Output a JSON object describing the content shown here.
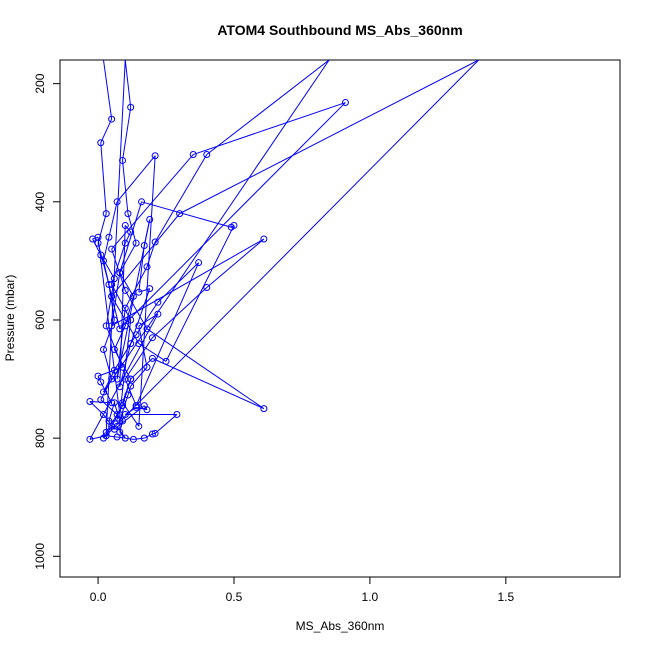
{
  "chart_data": {
    "type": "scatter",
    "title": "ATOM4 Southbound MS_Abs_360nm",
    "xlabel": "MS_Abs_360nm",
    "ylabel": "Pressure (mbar)",
    "xlim": [
      -0.14,
      1.92
    ],
    "ylim": [
      1035,
      160
    ],
    "y_reversed": true,
    "x_ticks": [
      "0.0",
      "0.5",
      "1.0",
      "1.5"
    ],
    "y_ticks": [
      "200",
      "400",
      "600",
      "800",
      "1000"
    ],
    "grid": false,
    "legend": "none",
    "series_color": "#0000ff",
    "marker": "open-circle",
    "connected": true,
    "series": [
      {
        "points": [
          [
            0.02,
            160
          ],
          [
            0.05,
            260
          ],
          [
            0.01,
            300
          ],
          [
            0.03,
            420
          ],
          [
            0.0,
            470
          ],
          [
            0.04,
            540
          ],
          [
            0.06,
            600
          ],
          [
            0.02,
            650
          ],
          [
            0.05,
            700
          ],
          [
            0.01,
            735
          ],
          [
            0.07,
            760
          ],
          [
            0.03,
            790
          ],
          [
            0.1,
            160
          ],
          [
            0.12,
            240
          ],
          [
            0.09,
            330
          ],
          [
            0.11,
            420
          ],
          [
            0.14,
            470
          ],
          [
            0.08,
            520
          ],
          [
            0.13,
            560
          ],
          [
            0.1,
            610
          ],
          [
            0.06,
            650
          ],
          [
            0.12,
            700
          ],
          [
            0.09,
            740
          ],
          [
            0.15,
            780
          ],
          [
            0.21,
            322
          ],
          [
            0.07,
            400
          ],
          [
            0.04,
            460
          ],
          [
            0.02,
            500
          ],
          [
            0.05,
            560
          ],
          [
            0.08,
            615
          ],
          [
            0.91,
            232
          ],
          [
            0.35,
            320
          ],
          [
            0.05,
            480
          ],
          [
            0.1,
            550
          ],
          [
            0.18,
            615
          ],
          [
            0.61,
            750
          ],
          [
            0.2,
            665
          ],
          [
            0.12,
            700
          ],
          [
            0.09,
            745
          ],
          [
            0.05,
            780
          ],
          [
            0.02,
            800
          ],
          [
            1.4,
            160
          ],
          [
            0.3,
            420
          ],
          [
            0.05,
            560
          ],
          [
            0.15,
            640
          ],
          [
            0.25,
            670
          ],
          [
            0.5,
            440
          ],
          [
            0.49,
            443
          ],
          [
            0.16,
            400
          ],
          [
            0.08,
            520
          ],
          [
            0.05,
            610
          ],
          [
            0.61,
            463
          ],
          [
            0.4,
            545
          ],
          [
            0.2,
            630
          ],
          [
            0.1,
            700
          ],
          [
            0.14,
            745
          ],
          [
            0.37,
            503
          ],
          [
            0.22,
            570
          ],
          [
            0.14,
            625
          ],
          [
            0.06,
            685
          ],
          [
            0.02,
            722
          ],
          [
            0.85,
            160
          ],
          [
            0.4,
            320
          ],
          [
            0.21,
            468
          ],
          [
            0.18,
            510
          ],
          [
            0.1,
            580
          ],
          [
            0.07,
            700
          ],
          [
            0.19,
            430
          ],
          [
            0.17,
            474
          ],
          [
            0.15,
            553
          ],
          [
            0.19,
            547
          ],
          [
            0.12,
            640
          ],
          [
            0.08,
            713
          ],
          [
            0.1,
            440
          ],
          [
            0.12,
            451
          ],
          [
            0.1,
            470
          ],
          [
            0.05,
            540
          ],
          [
            0.12,
            600
          ],
          [
            0.08,
            760
          ],
          [
            0.0,
            460
          ],
          [
            -0.02,
            463
          ],
          [
            0.01,
            490
          ],
          [
            0.06,
            530
          ],
          [
            0.03,
            610
          ],
          [
            0.09,
            680
          ],
          [
            0.0,
            695
          ],
          [
            0.01,
            705
          ],
          [
            0.05,
            740
          ],
          [
            -0.03,
            738
          ],
          [
            0.02,
            760
          ],
          [
            0.06,
            785
          ],
          [
            0.17,
            745
          ],
          [
            0.18,
            752
          ],
          [
            0.14,
            748
          ],
          [
            0.1,
            760
          ],
          [
            0.29,
            760
          ],
          [
            0.21,
            792
          ],
          [
            0.2,
            793
          ],
          [
            0.17,
            800
          ],
          [
            0.13,
            802
          ],
          [
            0.07,
            798
          ],
          [
            0.03,
            796
          ],
          [
            -0.03,
            802
          ],
          [
            0.22,
            590
          ],
          [
            0.15,
            610
          ],
          [
            0.18,
            680
          ],
          [
            0.12,
            712
          ],
          [
            0.11,
            727
          ],
          [
            0.08,
            770
          ],
          [
            0.06,
            740
          ],
          [
            0.04,
            771
          ],
          [
            0.09,
            771
          ],
          [
            0.08,
            790
          ],
          [
            0.1,
            800
          ],
          [
            0.07,
            780
          ]
        ]
      }
    ]
  }
}
